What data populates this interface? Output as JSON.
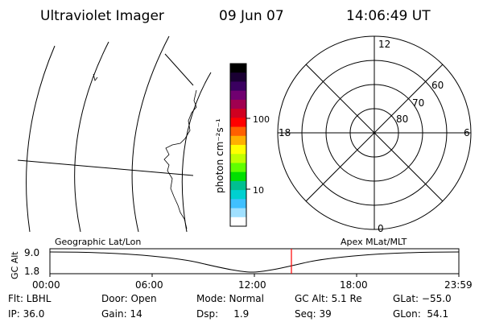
{
  "header": {
    "title": "Ultraviolet Imager",
    "date": "09 Jun 07",
    "time": "14:06:49 UT"
  },
  "colorbar": {
    "unit_label": "photon cm⁻²s⁻¹",
    "ticks": [
      "100",
      "10"
    ],
    "colors": [
      "#000000",
      "#1a0033",
      "#3a0060",
      "#700070",
      "#a00050",
      "#d00020",
      "#ff0000",
      "#ff6000",
      "#ffb000",
      "#ffff00",
      "#c0ff00",
      "#60ff00",
      "#00e000",
      "#00c090",
      "#00d0d0",
      "#40c0ff",
      "#a0e0ff",
      "#ffffff"
    ]
  },
  "polar_plot": {
    "mlt_labels": {
      "top": "12",
      "bottom": "0",
      "left": "18",
      "right": "6"
    },
    "lat_labels": [
      "60",
      "70",
      "80"
    ]
  },
  "timeline": {
    "y_axis_label": "GC Alt",
    "y_ticks": [
      "9.0",
      "1.8"
    ],
    "left_title": "Geographic Lat/Lon",
    "right_title": "Apex MLat/MLT",
    "x_ticks": [
      "00:00",
      "06:00",
      "12:00",
      "18:00",
      "23:59"
    ],
    "marker_color": "#ff0000"
  },
  "status": {
    "row1": [
      "Flt: LBHL",
      "Door: Open",
      "Mode: Normal",
      "GC Alt: 5.1 Re",
      "GLat: −55.0"
    ],
    "row2": [
      "IP: 36.0",
      "Gain: 14",
      "Dsp:     1.9",
      "Seq: 39",
      "GLon:  54.1"
    ]
  }
}
